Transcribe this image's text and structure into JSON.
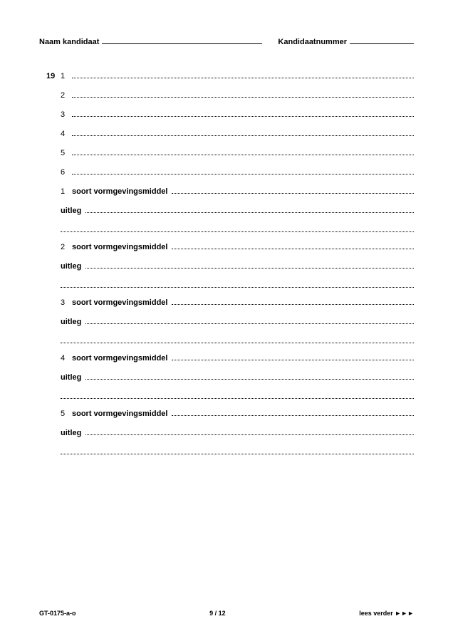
{
  "header": {
    "name_label": "Naam kandidaat",
    "number_label": "Kandidaatnummer"
  },
  "question_number": "19",
  "simple_rows": [
    "1",
    "2",
    "3",
    "4",
    "5",
    "6"
  ],
  "groups": [
    {
      "num": "1",
      "label_a": "soort vormgevingsmiddel",
      "label_b": "uitleg"
    },
    {
      "num": "2",
      "label_a": "soort vormgevingsmiddel",
      "label_b": "uitleg"
    },
    {
      "num": "3",
      "label_a": "soort vormgevingsmiddel",
      "label_b": "uitleg"
    },
    {
      "num": "4",
      "label_a": "soort vormgevingsmiddel",
      "label_b": "uitleg"
    },
    {
      "num": "5",
      "label_a": "soort vormgevingsmiddel",
      "label_b": "uitleg"
    }
  ],
  "footer": {
    "left": "GT-0175-a-o",
    "center": "9 / 12",
    "right": "lees verder ►►►"
  }
}
